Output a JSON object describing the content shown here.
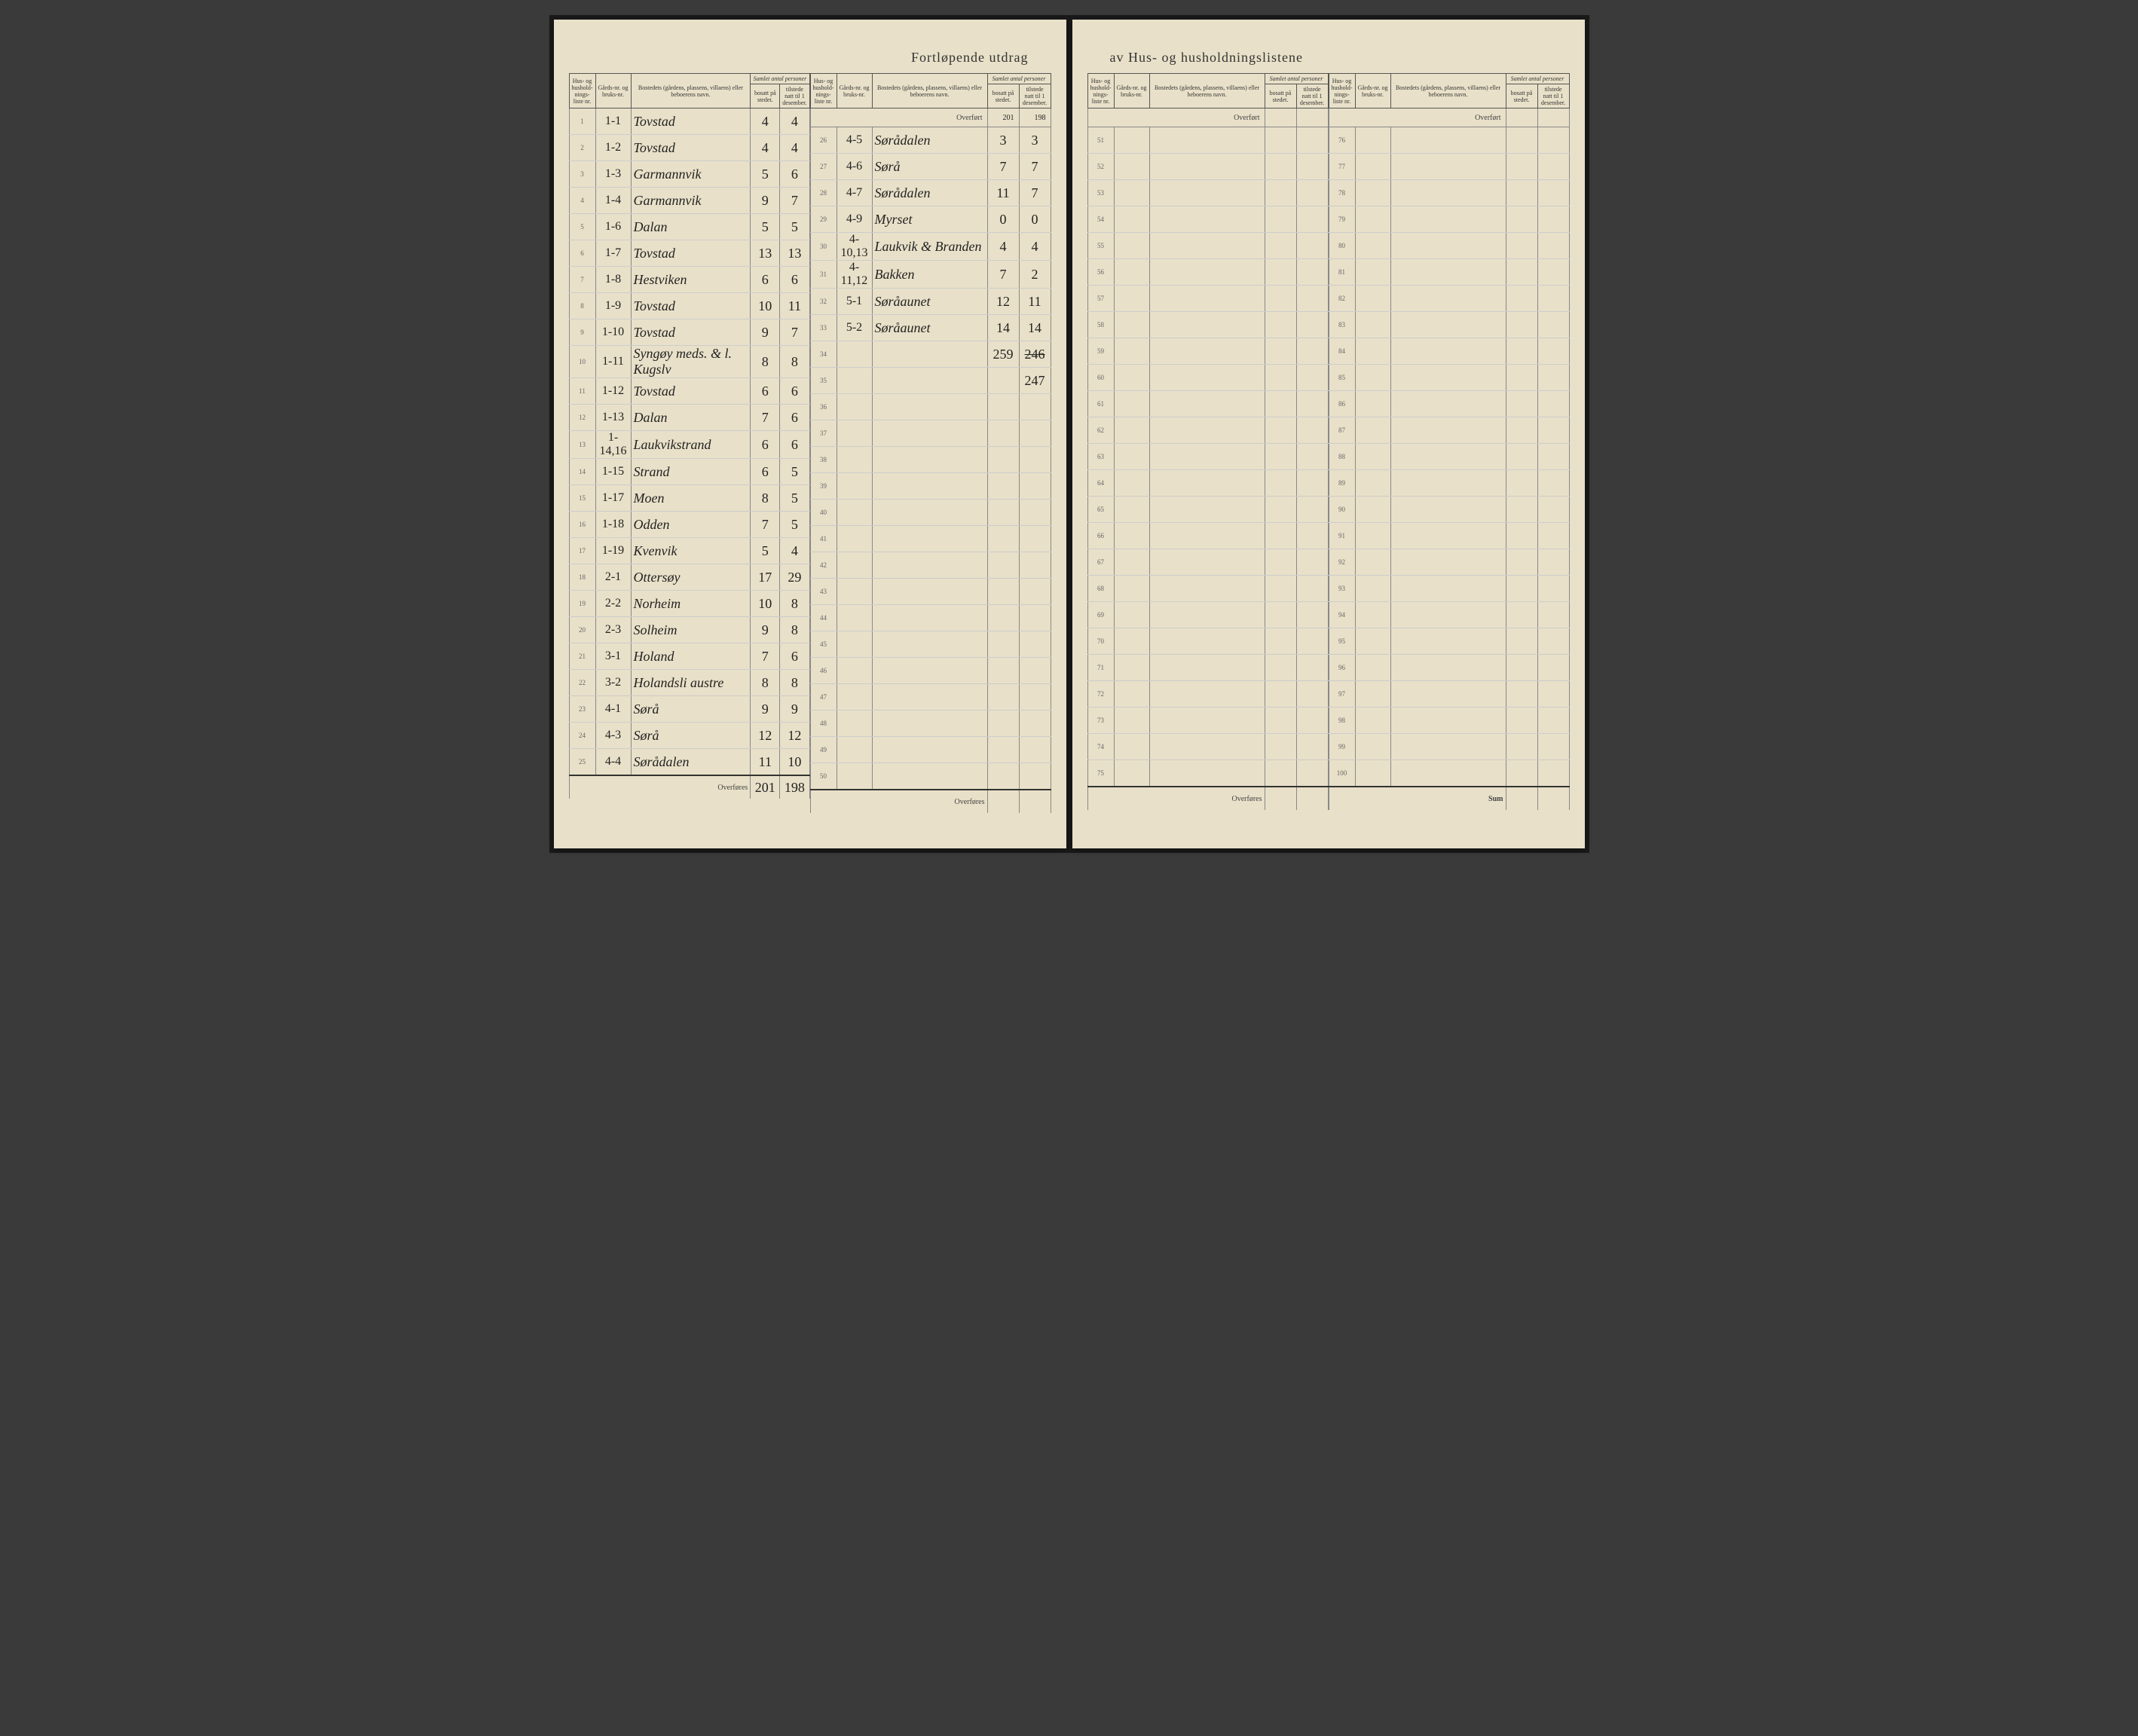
{
  "title_left": "Fortløpende utdrag",
  "title_right": "av Hus- og husholdningslistene",
  "headers": {
    "hus": "Hus- og hushold-nings-liste nr.",
    "gard": "Gårds-nr. og bruks-nr.",
    "bosted": "Bostedets (gårdens, plassens, villaens) eller beboerens navn.",
    "samlet": "Samlet antal personer",
    "bosatt": "bosatt på stedet.",
    "tilstede": "tilstede natt til 1 desember."
  },
  "overfort": "Overført",
  "overfores": "Overføres",
  "sum": "Sum",
  "left_col1": [
    {
      "n": "1",
      "g": "1-1",
      "b": "Tovstad",
      "bo": "4",
      "ti": "4"
    },
    {
      "n": "2",
      "g": "1-2",
      "b": "Tovstad",
      "bo": "4",
      "ti": "4"
    },
    {
      "n": "3",
      "g": "1-3",
      "b": "Garmannvik",
      "bo": "5",
      "ti": "6"
    },
    {
      "n": "4",
      "g": "1-4",
      "b": "Garmannvik",
      "bo": "9",
      "ti": "7"
    },
    {
      "n": "5",
      "g": "1-6",
      "b": "Dalan",
      "bo": "5",
      "ti": "5"
    },
    {
      "n": "6",
      "g": "1-7",
      "b": "Tovstad",
      "bo": "13",
      "ti": "13"
    },
    {
      "n": "7",
      "g": "1-8",
      "b": "Hestviken",
      "bo": "6",
      "ti": "6"
    },
    {
      "n": "8",
      "g": "1-9",
      "b": "Tovstad",
      "bo": "10",
      "ti": "11"
    },
    {
      "n": "9",
      "g": "1-10",
      "b": "Tovstad",
      "bo": "9",
      "ti": "7"
    },
    {
      "n": "10",
      "g": "1-11",
      "b": "Syngøy meds. & l. Kugslv",
      "bo": "8",
      "ti": "8"
    },
    {
      "n": "11",
      "g": "1-12",
      "b": "Tovstad",
      "bo": "6",
      "ti": "6"
    },
    {
      "n": "12",
      "g": "1-13",
      "b": "Dalan",
      "bo": "7",
      "ti": "6"
    },
    {
      "n": "13",
      "g": "1-14,16",
      "b": "Laukvikstrand",
      "bo": "6",
      "ti": "6"
    },
    {
      "n": "14",
      "g": "1-15",
      "b": "Strand",
      "bo": "6",
      "ti": "5"
    },
    {
      "n": "15",
      "g": "1-17",
      "b": "Moen",
      "bo": "8",
      "ti": "5"
    },
    {
      "n": "16",
      "g": "1-18",
      "b": "Odden",
      "bo": "7",
      "ti": "5"
    },
    {
      "n": "17",
      "g": "1-19",
      "b": "Kvenvik",
      "bo": "5",
      "ti": "4"
    },
    {
      "n": "18",
      "g": "2-1",
      "b": "Ottersøy",
      "bo": "17",
      "ti": "29"
    },
    {
      "n": "19",
      "g": "2-2",
      "b": "Norheim",
      "bo": "10",
      "ti": "8"
    },
    {
      "n": "20",
      "g": "2-3",
      "b": "Solheim",
      "bo": "9",
      "ti": "8"
    },
    {
      "n": "21",
      "g": "3-1",
      "b": "Holand",
      "bo": "7",
      "ti": "6"
    },
    {
      "n": "22",
      "g": "3-2",
      "b": "Holandsli austre",
      "bo": "8",
      "ti": "8"
    },
    {
      "n": "23",
      "g": "4-1",
      "b": "Sørå",
      "bo": "9",
      "ti": "9"
    },
    {
      "n": "24",
      "g": "4-3",
      "b": "Sørå",
      "bo": "12",
      "ti": "12"
    },
    {
      "n": "25",
      "g": "4-4",
      "b": "Sørådalen",
      "bo": "11",
      "ti": "10"
    }
  ],
  "left_col1_foot": {
    "bo": "201",
    "ti": "198"
  },
  "left_col2_overfort": {
    "bo": "201",
    "ti": "198"
  },
  "left_col2": [
    {
      "n": "26",
      "g": "4-5",
      "b": "Sørådalen",
      "bo": "3",
      "ti": "3"
    },
    {
      "n": "27",
      "g": "4-6",
      "b": "Sørå",
      "bo": "7",
      "ti": "7"
    },
    {
      "n": "28",
      "g": "4-7",
      "b": "Sørådalen",
      "bo": "11",
      "ti": "7"
    },
    {
      "n": "29",
      "g": "4-9",
      "b": "Myrset",
      "bo": "0",
      "ti": "0"
    },
    {
      "n": "30",
      "g": "4-10,13",
      "b": "Laukvik & Branden",
      "bo": "4",
      "ti": "4"
    },
    {
      "n": "31",
      "g": "4-11,12",
      "b": "Bakken",
      "bo": "7",
      "ti": "2"
    },
    {
      "n": "32",
      "g": "5-1",
      "b": "Søråaunet",
      "bo": "12",
      "ti": "11"
    },
    {
      "n": "33",
      "g": "5-2",
      "b": "Søråaunet",
      "bo": "14",
      "ti": "14"
    },
    {
      "n": "34",
      "g": "",
      "b": "",
      "bo": "259",
      "ti": "246",
      "struck": true
    },
    {
      "n": "35",
      "g": "",
      "b": "",
      "bo": "",
      "ti": "247"
    },
    {
      "n": "36",
      "g": "",
      "b": "",
      "bo": "",
      "ti": ""
    },
    {
      "n": "37",
      "g": "",
      "b": "",
      "bo": "",
      "ti": ""
    },
    {
      "n": "38",
      "g": "",
      "b": "",
      "bo": "",
      "ti": ""
    },
    {
      "n": "39",
      "g": "",
      "b": "",
      "bo": "",
      "ti": ""
    },
    {
      "n": "40",
      "g": "",
      "b": "",
      "bo": "",
      "ti": ""
    },
    {
      "n": "41",
      "g": "",
      "b": "",
      "bo": "",
      "ti": ""
    },
    {
      "n": "42",
      "g": "",
      "b": "",
      "bo": "",
      "ti": ""
    },
    {
      "n": "43",
      "g": "",
      "b": "",
      "bo": "",
      "ti": ""
    },
    {
      "n": "44",
      "g": "",
      "b": "",
      "bo": "",
      "ti": ""
    },
    {
      "n": "45",
      "g": "",
      "b": "",
      "bo": "",
      "ti": ""
    },
    {
      "n": "46",
      "g": "",
      "b": "",
      "bo": "",
      "ti": ""
    },
    {
      "n": "47",
      "g": "",
      "b": "",
      "bo": "",
      "ti": ""
    },
    {
      "n": "48",
      "g": "",
      "b": "",
      "bo": "",
      "ti": ""
    },
    {
      "n": "49",
      "g": "",
      "b": "",
      "bo": "",
      "ti": ""
    },
    {
      "n": "50",
      "g": "",
      "b": "",
      "bo": "",
      "ti": ""
    }
  ],
  "right_col1_nums": [
    51,
    52,
    53,
    54,
    55,
    56,
    57,
    58,
    59,
    60,
    61,
    62,
    63,
    64,
    65,
    66,
    67,
    68,
    69,
    70,
    71,
    72,
    73,
    74,
    75
  ],
  "right_col2_nums": [
    76,
    77,
    78,
    79,
    80,
    81,
    82,
    83,
    84,
    85,
    86,
    87,
    88,
    89,
    90,
    91,
    92,
    93,
    94,
    95,
    96,
    97,
    98,
    99,
    100
  ]
}
